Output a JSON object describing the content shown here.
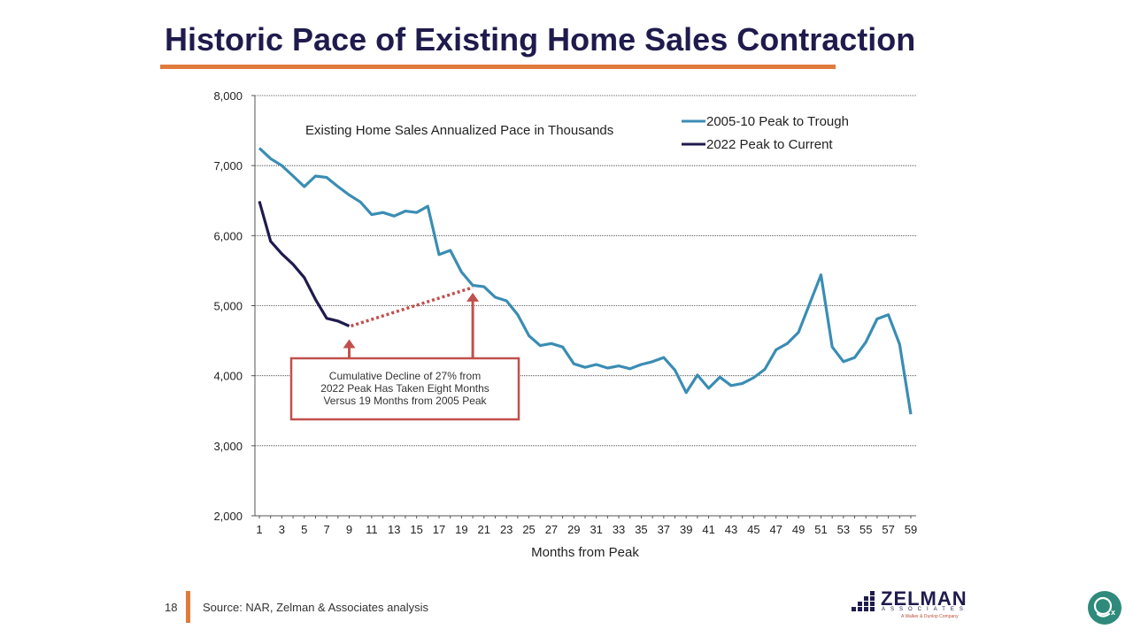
{
  "slide": {
    "title": "Historic Pace of Existing Home Sales Contraction",
    "page_number": "18",
    "source": "Source: NAR, Zelman & Associates analysis",
    "logo": {
      "name": "ZELMAN",
      "sub": "ASSOCIATES",
      "tagline": "A Walker & Dunlop Company"
    },
    "colors": {
      "title": "#1f1b4d",
      "accent": "#e07b3c",
      "series_2005": "#3a8db3",
      "series_2022": "#1f1b4d",
      "annotation": "#c0504d"
    },
    "corner_badge_icon": "chat-bubble-icon"
  },
  "chart_data": {
    "type": "line",
    "title": "Existing Home Sales Annualized Pace in Thousands",
    "xlabel": "Months from Peak",
    "ylabel": "",
    "xlim": [
      1,
      59
    ],
    "ylim": [
      2000,
      8000
    ],
    "x_ticks": [
      "1",
      "3",
      "5",
      "7",
      "9",
      "11",
      "13",
      "15",
      "17",
      "19",
      "21",
      "23",
      "25",
      "27",
      "29",
      "31",
      "33",
      "35",
      "37",
      "39",
      "41",
      "43",
      "45",
      "47",
      "49",
      "51",
      "53",
      "55",
      "57",
      "59"
    ],
    "y_ticks": [
      "2,000",
      "3,000",
      "4,000",
      "5,000",
      "6,000",
      "7,000",
      "8,000"
    ],
    "grid": "horizontal",
    "legend_position": "top-right",
    "series": [
      {
        "name": "2005-10 Peak to Trough",
        "x": [
          1,
          2,
          3,
          4,
          5,
          6,
          7,
          8,
          9,
          10,
          11,
          12,
          13,
          14,
          15,
          16,
          17,
          18,
          19,
          20,
          21,
          22,
          23,
          24,
          25,
          26,
          27,
          28,
          29,
          30,
          31,
          32,
          33,
          34,
          35,
          36,
          37,
          38,
          39,
          40,
          41,
          42,
          43,
          44,
          45,
          46,
          47,
          48,
          49,
          50,
          51,
          52,
          53,
          54,
          55,
          56,
          57,
          58,
          59
        ],
        "values": [
          7250,
          7100,
          7000,
          6850,
          6700,
          6850,
          6830,
          6700,
          6580,
          6480,
          6300,
          6330,
          6280,
          6350,
          6330,
          6420,
          5730,
          5790,
          5480,
          5290,
          5270,
          5120,
          5070,
          4870,
          4570,
          4430,
          4460,
          4410,
          4170,
          4120,
          4160,
          4110,
          4140,
          4100,
          4160,
          4200,
          4260,
          4080,
          3760,
          4010,
          3820,
          3980,
          3860,
          3890,
          3970,
          4090,
          4370,
          4460,
          4620,
          5030,
          5440,
          4410,
          4200,
          4260,
          4480,
          4810,
          4870,
          4450,
          3450
        ]
      },
      {
        "name": "2022 Peak to Current",
        "x": [
          1,
          2,
          3,
          4,
          5,
          6,
          7,
          8,
          9
        ],
        "values": [
          6490,
          5920,
          5740,
          5590,
          5400,
          5090,
          4820,
          4780,
          4710
        ]
      }
    ],
    "annotations": [
      {
        "text": "Cumulative Decline of 27% from 2022 Peak Has Taken Eight Months Versus 19 Months from 2005 Peak",
        "dotted_line": {
          "from_x": 9,
          "from_y": 4710,
          "to_x": 20,
          "to_y": 5260
        },
        "arrows_to_x": [
          9,
          20
        ]
      }
    ]
  }
}
